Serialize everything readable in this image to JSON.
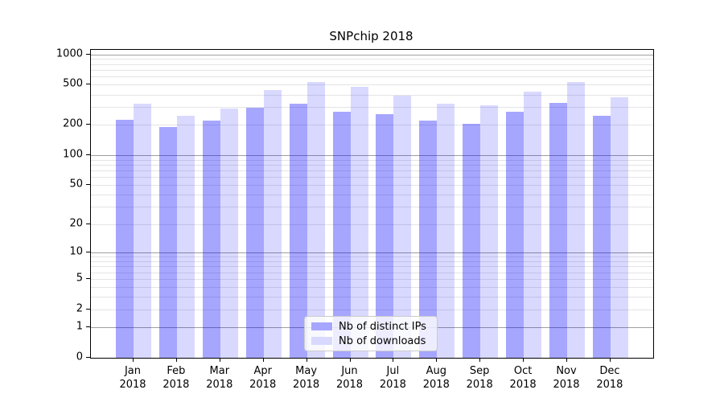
{
  "title": "SNPchip 2018",
  "colors": {
    "bar_distinct_ips": "rgba(0,0,255,0.35)",
    "bar_downloads": "rgba(0,0,255,0.15)",
    "legend_swatch_distinct_ips": "#a6a6ff",
    "legend_swatch_downloads": "#d9d9ff",
    "grid_major": "#9f9f9f",
    "grid_minor": "#e4e4e4",
    "frame": "#000000"
  },
  "legend": {
    "items": [
      {
        "key": "distinct_ips",
        "label": "Nb of distinct IPs"
      },
      {
        "key": "downloads",
        "label": "Nb of downloads"
      }
    ]
  },
  "chart_data": {
    "type": "bar",
    "title": "SNPchip 2018",
    "categories": [
      "Jan 2018",
      "Feb 2018",
      "Mar 2018",
      "Apr 2018",
      "May 2018",
      "Jun 2018",
      "Jul 2018",
      "Aug 2018",
      "Sep 2018",
      "Oct 2018",
      "Nov 2018",
      "Dec 2018"
    ],
    "series": [
      {
        "key": "distinct_ips",
        "name": "Nb of distinct IPs",
        "values": [
          225,
          190,
          222,
          296,
          324,
          270,
          253,
          220,
          205,
          270,
          333,
          246
        ]
      },
      {
        "key": "downloads",
        "name": "Nb of downloads",
        "values": [
          327,
          247,
          288,
          445,
          535,
          480,
          390,
          325,
          315,
          430,
          527,
          372
        ]
      }
    ],
    "xlabel": "",
    "ylabel": "",
    "yscale": "log1p",
    "ylim": [
      0,
      1106
    ],
    "ytick_values": [
      0,
      1,
      2,
      5,
      10,
      20,
      50,
      100,
      200,
      500,
      1000
    ],
    "ytick_labels": [
      "0",
      "1",
      "2",
      "5",
      "10",
      "20",
      "50",
      "100",
      "200",
      "500",
      "1000"
    ],
    "grid": "both",
    "grid_minor_values": [
      2,
      3,
      4,
      5,
      6,
      7,
      8,
      9,
      20,
      30,
      40,
      50,
      60,
      70,
      80,
      90,
      200,
      300,
      400,
      500,
      600,
      700,
      800,
      900
    ],
    "grid_major_values": [
      1,
      10,
      100,
      1000
    ],
    "legend_position": "lower center"
  }
}
